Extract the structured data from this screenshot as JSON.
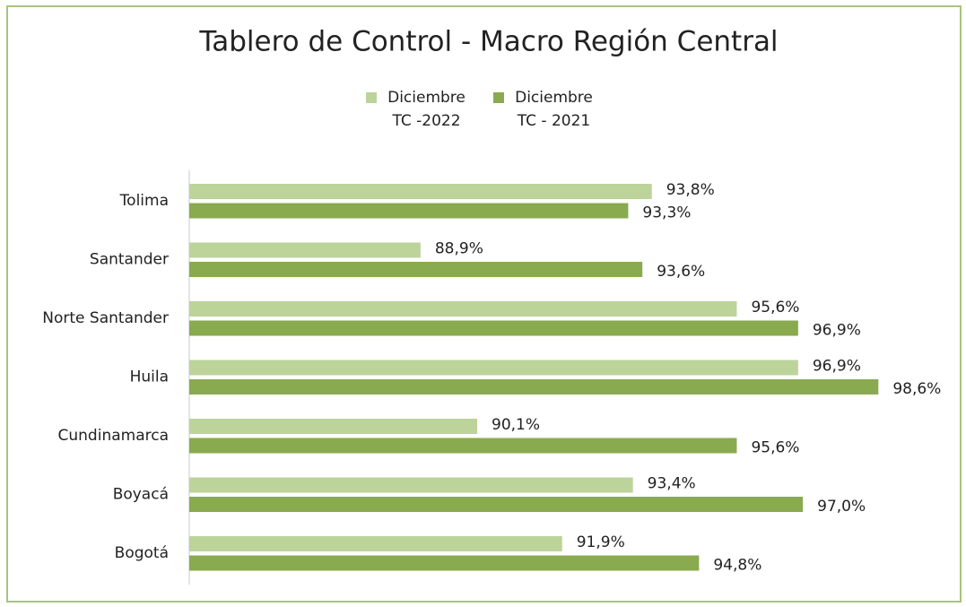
{
  "chart_data": {
    "type": "hbar",
    "title": "Tablero de Control - Macro Región Central",
    "categories": [
      "Tolima",
      "Santander",
      "Norte Santander",
      "Huila",
      "Cundinamarca",
      "Boyacá",
      "Bogotá"
    ],
    "series": [
      {
        "name": "Diciembre TC -2022",
        "color": "#bcd39a",
        "values": [
          93.8,
          88.9,
          95.6,
          96.9,
          90.1,
          93.4,
          91.9
        ],
        "value_labels": [
          "93,8%",
          "88,9%",
          "95,6%",
          "96,9%",
          "90,1%",
          "93,4%",
          "91,9%"
        ]
      },
      {
        "name": "Diciembre TC - 2021",
        "color": "#8aaa4f",
        "values": [
          93.3,
          93.6,
          96.9,
          98.6,
          95.6,
          97.0,
          94.8
        ],
        "value_labels": [
          "93,3%",
          "93,6%",
          "96,9%",
          "98,6%",
          "95,6%",
          "97,0%",
          "94,8%"
        ]
      }
    ],
    "xlim": [
      84,
      100
    ],
    "legend": "top"
  }
}
